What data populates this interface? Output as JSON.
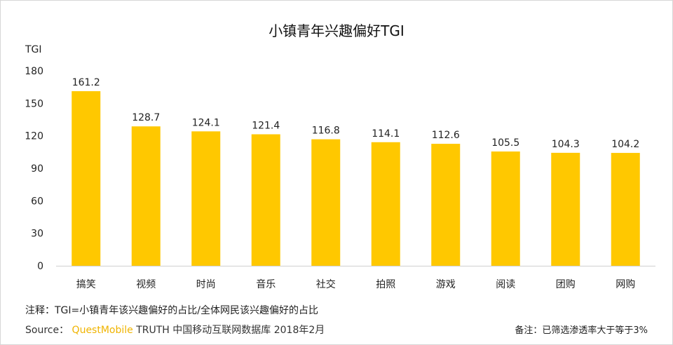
{
  "chart_data": {
    "type": "bar",
    "title": "小镇青年兴趣偏好TGI",
    "ylabel": "TGI",
    "categories": [
      "搞笑",
      "视频",
      "时尚",
      "音乐",
      "社交",
      "拍照",
      "游戏",
      "阅读",
      "团购",
      "网购"
    ],
    "values": [
      161.2,
      128.7,
      124.1,
      121.4,
      116.8,
      114.1,
      112.6,
      105.5,
      104.3,
      104.2
    ],
    "value_labels": [
      "161.2",
      "128.7",
      "124.1",
      "121.4",
      "116.8",
      "114.1",
      "112.6",
      "105.5",
      "104.3",
      "104.2"
    ],
    "ylim": [
      0,
      180
    ],
    "yticks": [
      "0",
      "30",
      "60",
      "90",
      "120",
      "150",
      "180"
    ],
    "grid": false,
    "bar_color": "#FFC800"
  },
  "note": "注释：TGI=小镇青年该兴趣偏好的占比/全体网民该兴趣偏好的占比",
  "source": {
    "prefix": "Source：",
    "brand": "QuestMobile",
    "suffix": " TRUTH 中国移动互联网数据库 2018年2月"
  },
  "remark": "备注：已筛选渗透率大于等于3%"
}
